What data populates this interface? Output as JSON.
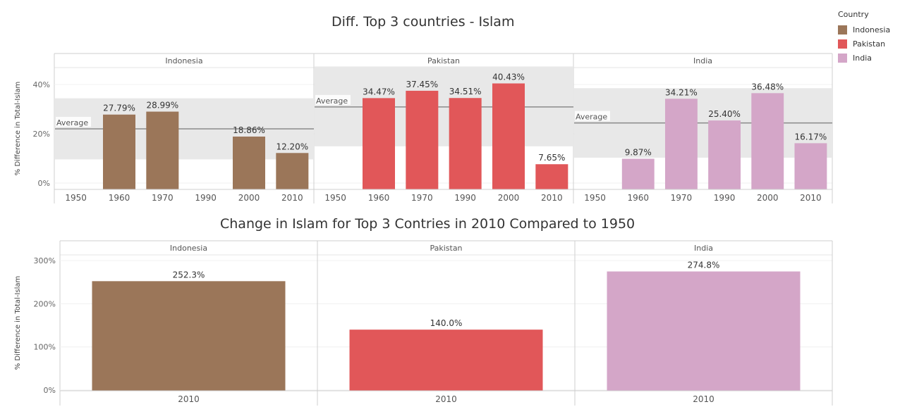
{
  "legend": {
    "title": "Country",
    "items": [
      {
        "label": "Indonesia",
        "color": "#9b7659"
      },
      {
        "label": "Pakistan",
        "color": "#e15759"
      },
      {
        "label": "India",
        "color": "#d4a6c8"
      }
    ]
  },
  "reference_line_label": "Average",
  "chart_data": [
    {
      "type": "bar",
      "title": "Diff. Top 3 countries - Islam",
      "ylabel": "% Difference in Total-Islam",
      "ylim": [
        0,
        55
      ],
      "yticks": [
        "0%",
        "20%",
        "40%"
      ],
      "reference_line": "Average",
      "panels": [
        {
          "name": "Indonesia",
          "color": "#9b7659",
          "categories": [
            "1950",
            "1960",
            "1970",
            "1990",
            "2000",
            "2010"
          ],
          "values": [
            null,
            27.79,
            28.99,
            null,
            18.86,
            12.2
          ],
          "labels": [
            "",
            "27.79%",
            "28.99%",
            "",
            "18.86%",
            "12.20%"
          ],
          "average": 22.0,
          "band": [
            9.6,
            34.4
          ]
        },
        {
          "name": "Pakistan",
          "color": "#e15759",
          "categories": [
            "1950",
            "1960",
            "1970",
            "1990",
            "2000",
            "2010"
          ],
          "values": [
            null,
            34.47,
            37.45,
            34.51,
            40.43,
            7.65
          ],
          "labels": [
            "",
            "34.47%",
            "37.45%",
            "34.51%",
            "40.43%",
            "7.65%"
          ],
          "average": 30.9,
          "band": [
            14.9,
            47.3
          ]
        },
        {
          "name": "India",
          "color": "#d4a6c8",
          "categories": [
            "1950",
            "1960",
            "1970",
            "1990",
            "2000",
            "2010"
          ],
          "values": [
            null,
            9.87,
            34.21,
            25.4,
            36.48,
            16.17
          ],
          "labels": [
            "",
            "9.87%",
            "34.21%",
            "25.40%",
            "36.48%",
            "16.17%"
          ],
          "average": 24.4,
          "band": [
            10.3,
            38.5
          ]
        }
      ]
    },
    {
      "type": "bar",
      "title": "Change in Islam for Top 3 Contries in 2010 Compared to 1950",
      "ylabel": "% Difference in Total-Islam",
      "ylim": [
        0,
        320
      ],
      "yticks": [
        "0%",
        "100%",
        "200%",
        "300%"
      ],
      "panels": [
        {
          "name": "Indonesia",
          "color": "#9b7659",
          "categories": [
            "2010"
          ],
          "values": [
            252.3
          ],
          "labels": [
            "252.3%"
          ]
        },
        {
          "name": "Pakistan",
          "color": "#e15759",
          "categories": [
            "2010"
          ],
          "values": [
            140.0
          ],
          "labels": [
            "140.0%"
          ]
        },
        {
          "name": "India",
          "color": "#d4a6c8",
          "categories": [
            "2010"
          ],
          "values": [
            274.8
          ],
          "labels": [
            "274.8%"
          ]
        }
      ]
    }
  ]
}
